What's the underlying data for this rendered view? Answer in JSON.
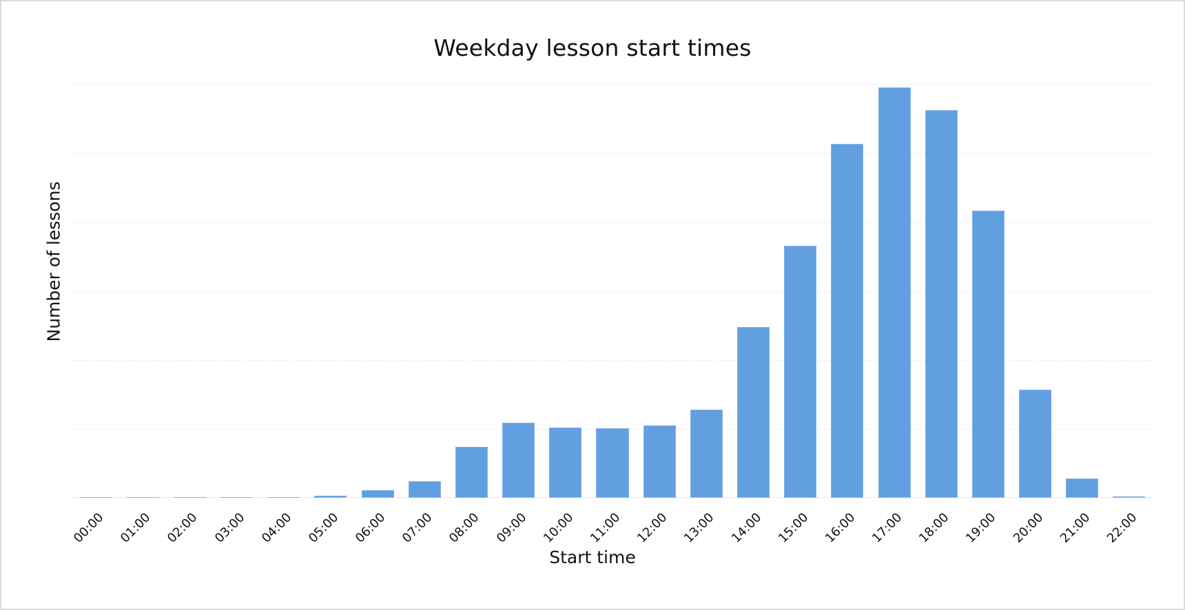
{
  "chart": {
    "title": "Weekday lesson start times",
    "xlabel": "Start time",
    "ylabel": "Number of lessons",
    "bar_color": "#629fe0",
    "grid_color": "#ececec",
    "background": "#ffffff"
  },
  "chart_data": {
    "type": "bar",
    "title": "Weekday lesson start times",
    "xlabel": "Start time",
    "ylabel": "Number of lessons",
    "categories": [
      "00:00",
      "01:00",
      "02:00",
      "03:00",
      "04:00",
      "05:00",
      "06:00",
      "07:00",
      "08:00",
      "09:00",
      "10:00",
      "11:00",
      "12:00",
      "13:00",
      "14:00",
      "15:00",
      "16:00",
      "17:00",
      "18:00",
      "19:00",
      "20:00",
      "21:00",
      "22:00"
    ],
    "values": [
      0.015,
      0.01,
      0.01,
      0.01,
      0.01,
      0.03,
      0.11,
      0.24,
      0.74,
      1.09,
      1.02,
      1.01,
      1.05,
      1.28,
      2.48,
      3.65,
      5.13,
      5.95,
      5.62,
      4.16,
      1.57,
      0.28,
      0.02
    ],
    "value_units": "relative (gridline intervals; y-axis has no tick labels)",
    "ylim": [
      0,
      6
    ],
    "grid": true,
    "grid_lines": 6,
    "y_tick_labels_shown": false,
    "legend": null
  }
}
